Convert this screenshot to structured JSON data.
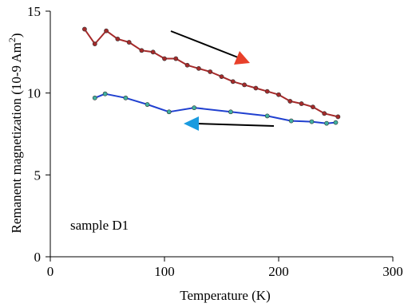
{
  "chart_data": {
    "type": "line",
    "xlabel": "Temperature (K)",
    "ylabel_main": "Remanent magnetization (10-9 Am",
    "ylabel_sup": "2",
    "ylabel_close": ")",
    "xlim": [
      0,
      300
    ],
    "ylim": [
      0,
      15
    ],
    "x_ticks": [
      0,
      100,
      200,
      300
    ],
    "y_ticks": [
      0,
      5,
      10,
      15
    ],
    "grid": false,
    "legend": "none",
    "annotation": "sample D1",
    "series": [
      {
        "color": "#a52a2a",
        "marker_color": "#a52a2a",
        "direction": "decreasing-temperature",
        "arrow_color": "#e8402a",
        "x": [
          30,
          39,
          49,
          59,
          69,
          80,
          90,
          100,
          110,
          120,
          130,
          140,
          150,
          160,
          170,
          180,
          190,
          200,
          210,
          220,
          230,
          240,
          252
        ],
        "y": [
          13.9,
          13.0,
          13.8,
          13.3,
          13.1,
          12.6,
          12.5,
          12.1,
          12.1,
          11.7,
          11.5,
          11.3,
          11.0,
          10.7,
          10.5,
          10.3,
          10.1,
          9.9,
          9.5,
          9.35,
          9.15,
          8.75,
          8.55
        ]
      },
      {
        "color": "#2040d0",
        "marker_color": "#40b0a0",
        "direction": "increasing-temperature",
        "arrow_color": "#1a9be0",
        "x": [
          39,
          48,
          66,
          85,
          104,
          126,
          158,
          190,
          211,
          229,
          242,
          250
        ],
        "y": [
          9.7,
          9.95,
          9.7,
          9.3,
          8.85,
          9.1,
          8.85,
          8.6,
          8.3,
          8.25,
          8.15,
          8.2
        ]
      }
    ]
  }
}
